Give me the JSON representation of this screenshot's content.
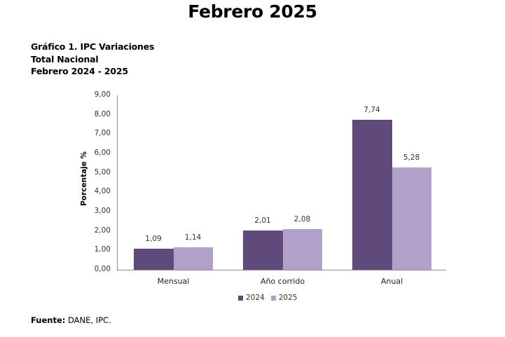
{
  "page": {
    "title": "Febrero 2025"
  },
  "chart_heading": {
    "line1": "Gráfico 1. IPC Variaciones",
    "line2": "Total Nacional",
    "line3": "Febrero 2024 - 2025"
  },
  "source": {
    "label": "Fuente:",
    "text": " DANE, IPC."
  },
  "colors": {
    "series_2024": "#604a7b",
    "series_2025": "#b1a0c7"
  },
  "chart_data": {
    "type": "bar",
    "title": "Gráfico 1. IPC Variaciones - Total Nacional - Febrero 2024 - 2025",
    "categories": [
      "Mensual",
      "Año corrido",
      "Anual"
    ],
    "series": [
      {
        "name": "2024",
        "values": [
          1.09,
          2.01,
          7.74
        ],
        "labels": [
          "1,09",
          "2,01",
          "7,74"
        ],
        "color": "#604a7b"
      },
      {
        "name": "2025",
        "values": [
          1.14,
          2.08,
          5.28
        ],
        "labels": [
          "1,14",
          "2,08",
          "5,28"
        ],
        "color": "#b1a0c7"
      }
    ],
    "xlabel": "",
    "ylabel": "Porcentaje %",
    "ylim": [
      0,
      9
    ],
    "yticks": [
      "0,00",
      "1,00",
      "2,00",
      "3,00",
      "4,00",
      "5,00",
      "6,00",
      "7,00",
      "8,00",
      "9,00"
    ],
    "grid": false,
    "legend_position": "bottom"
  }
}
